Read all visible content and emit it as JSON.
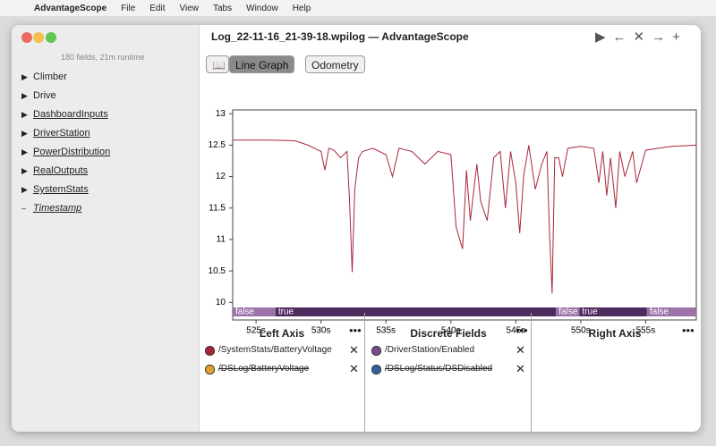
{
  "menu_bar": {
    "app": "AdvantageScope",
    "items": [
      "File",
      "Edit",
      "View",
      "Tabs",
      "Window",
      "Help"
    ]
  },
  "window": {
    "title": "Log_22-11-16_21-39-18.wpilog — AdvantageScope"
  },
  "sidebar": {
    "summary": "180 fields, 21m runtime",
    "items": [
      {
        "label": "Climber"
      },
      {
        "label": "Drive"
      },
      {
        "label": "DashboardInputs",
        "underline": true
      },
      {
        "label": "DriverStation",
        "underline": true
      },
      {
        "label": "PowerDistribution",
        "underline": true
      },
      {
        "label": "RealOutputs",
        "underline": true
      },
      {
        "label": "SystemStats",
        "underline": true
      },
      {
        "label": "Timestamp",
        "underline": true,
        "italic": true,
        "leaf": true
      }
    ]
  },
  "tabs": [
    "Line Graph",
    "Odometry"
  ],
  "graph": {
    "xlim": [
      523.2,
      558.9
    ],
    "ylim": [
      9.72,
      13.06
    ],
    "yticks": [
      13,
      12.5,
      12,
      11.5,
      11,
      10.5,
      10
    ],
    "xticks": [
      {
        "value": 525,
        "label": "525s"
      },
      {
        "value": 530,
        "label": "530s"
      },
      {
        "value": 535,
        "label": "535s"
      },
      {
        "value": 540,
        "label": "540s"
      },
      {
        "value": 545,
        "label": "545s"
      },
      {
        "value": 550,
        "label": "550s"
      },
      {
        "value": 555,
        "label": "555s"
      }
    ],
    "x": [
      523.2,
      526,
      528,
      529,
      529.5,
      530,
      530.3,
      530.6,
      531,
      531.5,
      532,
      532.2,
      532.4,
      532.6,
      532.9,
      533.2,
      534,
      535,
      535.5,
      536,
      537,
      538,
      539,
      540,
      540.4,
      540.9,
      541.2,
      541.5,
      542,
      542.3,
      542.8,
      543.3,
      543.8,
      544.2,
      544.6,
      545,
      545.3,
      545.6,
      546,
      546.5,
      547,
      547.4,
      547.6,
      547.8,
      548,
      548.3,
      548.6,
      549,
      550,
      551,
      551.4,
      551.7,
      552,
      552.3,
      552.7,
      553,
      553.4,
      554,
      554.3,
      555,
      556,
      557,
      558.9
    ],
    "series": [
      {
        "name": "/SystemStats/BatteryVoltage",
        "color": "#a8263a",
        "values": [
          12.58,
          12.58,
          12.57,
          12.5,
          12.45,
          12.4,
          12.1,
          12.45,
          12.42,
          12.3,
          12.4,
          11.6,
          10.48,
          11.8,
          12.3,
          12.4,
          12.45,
          12.35,
          12.0,
          12.45,
          12.4,
          12.2,
          12.4,
          12.35,
          11.2,
          10.85,
          12.1,
          11.3,
          12.2,
          11.6,
          11.3,
          12.3,
          12.4,
          11.5,
          12.4,
          11.9,
          11.1,
          12.0,
          12.5,
          11.8,
          12.2,
          12.4,
          11.1,
          10.14,
          12.3,
          12.3,
          12.0,
          12.45,
          12.48,
          12.45,
          11.9,
          12.4,
          11.7,
          12.3,
          11.5,
          12.4,
          12.0,
          12.4,
          11.9,
          12.42,
          12.45,
          12.48,
          12.5
        ]
      }
    ],
    "discrete": [
      {
        "label": "false",
        "start": 523.2,
        "end": 526.5,
        "color": "#9c72a8"
      },
      {
        "label": "true",
        "start": 526.5,
        "end": 548.1,
        "color": "#4f2a5f"
      },
      {
        "label": "false",
        "start": 548.1,
        "end": 549.9,
        "color": "#9c72a8"
      },
      {
        "label": "true",
        "start": 549.9,
        "end": 555.1,
        "color": "#4f2a5f"
      },
      {
        "label": "false",
        "start": 555.1,
        "end": 558.9,
        "color": "#9c72a8"
      }
    ]
  },
  "panels": [
    {
      "title": "Left Axis",
      "fields": [
        {
          "name": "/SystemStats/BatteryVoltage",
          "color": "#a8263a"
        },
        {
          "name": "/DSLog/BatteryVoltage",
          "color": "#e0a030",
          "hidden": true
        }
      ]
    },
    {
      "title": "Discrete Fields",
      "fields": [
        {
          "name": "/DriverStation/Enabled",
          "color": "#7a4a8a"
        },
        {
          "name": "/DSLog/Status/DSDisabled",
          "color": "#2f5fa0",
          "hidden": true
        }
      ]
    },
    {
      "title": "Right Axis",
      "fields": []
    }
  ]
}
